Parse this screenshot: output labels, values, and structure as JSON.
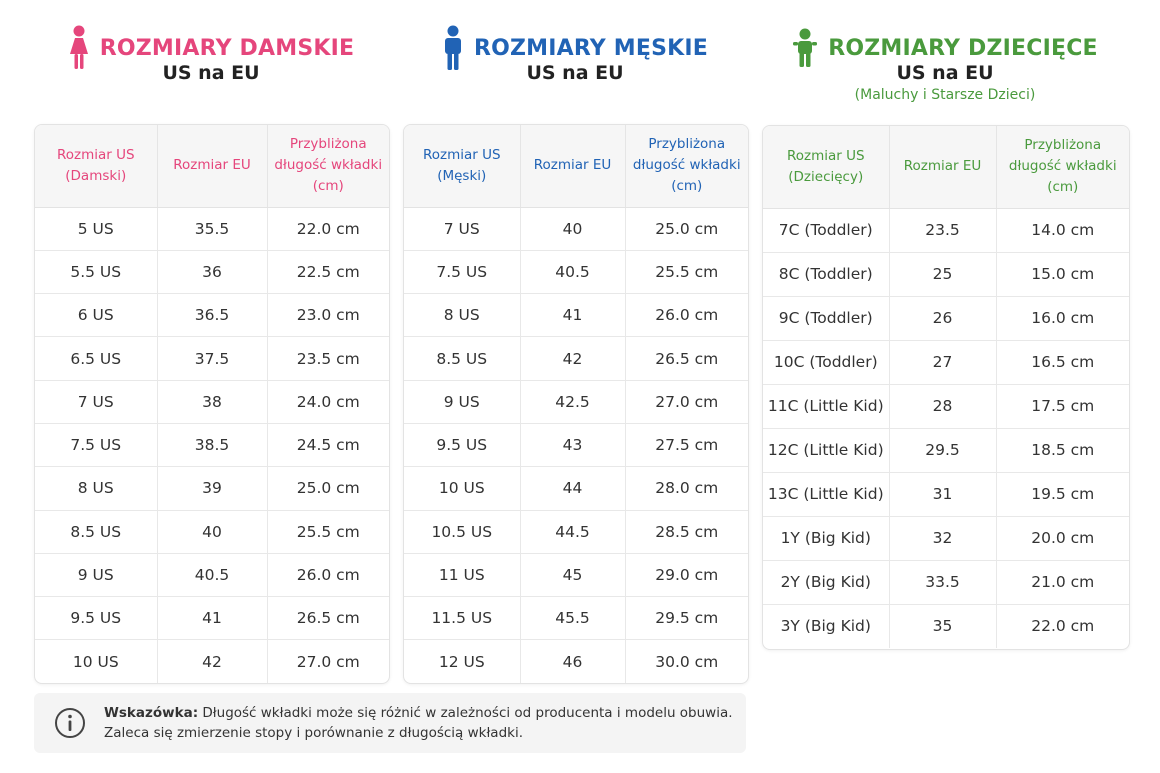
{
  "colors": {
    "women": "#e5467c",
    "men": "#2163b5",
    "kids": "#4a9a3d"
  },
  "women": {
    "icon": "woman-icon",
    "title": "ROZMIARY DAMSKIE",
    "subtitle": "US na EU",
    "headers": [
      "Rozmiar US (Damski)",
      "Rozmiar EU",
      "Przybliżona długość wkładki (cm)"
    ],
    "rows": [
      [
        "5 US",
        "35.5",
        "22.0 cm"
      ],
      [
        "5.5 US",
        "36",
        "22.5 cm"
      ],
      [
        "6 US",
        "36.5",
        "23.0 cm"
      ],
      [
        "6.5 US",
        "37.5",
        "23.5 cm"
      ],
      [
        "7 US",
        "38",
        "24.0 cm"
      ],
      [
        "7.5 US",
        "38.5",
        "24.5 cm"
      ],
      [
        "8 US",
        "39",
        "25.0 cm"
      ],
      [
        "8.5 US",
        "40",
        "25.5 cm"
      ],
      [
        "9 US",
        "40.5",
        "26.0 cm"
      ],
      [
        "9.5 US",
        "41",
        "26.5 cm"
      ],
      [
        "10 US",
        "42",
        "27.0 cm"
      ]
    ]
  },
  "men": {
    "icon": "man-icon",
    "title": "ROZMIARY MĘSKIE",
    "subtitle": "US na EU",
    "headers": [
      "Rozmiar US (Męski)",
      "Rozmiar EU",
      "Przybliżona długość wkładki (cm)"
    ],
    "rows": [
      [
        "7 US",
        "40",
        "25.0 cm"
      ],
      [
        "7.5 US",
        "40.5",
        "25.5 cm"
      ],
      [
        "8 US",
        "41",
        "26.0 cm"
      ],
      [
        "8.5 US",
        "42",
        "26.5 cm"
      ],
      [
        "9 US",
        "42.5",
        "27.0 cm"
      ],
      [
        "9.5 US",
        "43",
        "27.5 cm"
      ],
      [
        "10 US",
        "44",
        "28.0 cm"
      ],
      [
        "10.5 US",
        "44.5",
        "28.5 cm"
      ],
      [
        "11 US",
        "45",
        "29.0 cm"
      ],
      [
        "11.5 US",
        "45.5",
        "29.5 cm"
      ],
      [
        "12 US",
        "46",
        "30.0 cm"
      ]
    ]
  },
  "kids": {
    "icon": "child-icon",
    "title": "ROZMIARY DZIECIĘCE",
    "subtitle": "US na EU",
    "note": "(Maluchy i Starsze Dzieci)",
    "headers": [
      "Rozmiar US (Dziecięcy)",
      "Rozmiar EU",
      "Przybliżona długość wkładki (cm)"
    ],
    "rows": [
      [
        "7C (Toddler)",
        "23.5",
        "14.0 cm"
      ],
      [
        "8C (Toddler)",
        "25",
        "15.0 cm"
      ],
      [
        "9C (Toddler)",
        "26",
        "16.0 cm"
      ],
      [
        "10C (Toddler)",
        "27",
        "16.5 cm"
      ],
      [
        "11C (Little Kid)",
        "28",
        "17.5 cm"
      ],
      [
        "12C (Little Kid)",
        "29.5",
        "18.5 cm"
      ],
      [
        "13C (Little Kid)",
        "31",
        "19.5 cm"
      ],
      [
        "1Y (Big Kid)",
        "32",
        "20.0 cm"
      ],
      [
        "2Y (Big Kid)",
        "33.5",
        "21.0 cm"
      ],
      [
        "3Y (Big Kid)",
        "35",
        "22.0 cm"
      ]
    ]
  },
  "tip": {
    "icon": "info-icon",
    "label": "Wskazówka:",
    "line1": " Długość wkładki może się różnić w zależności od producenta i modelu obuwia.",
    "line2": "Zaleca się zmierzenie stopy i porównanie z długością wkładki."
  }
}
